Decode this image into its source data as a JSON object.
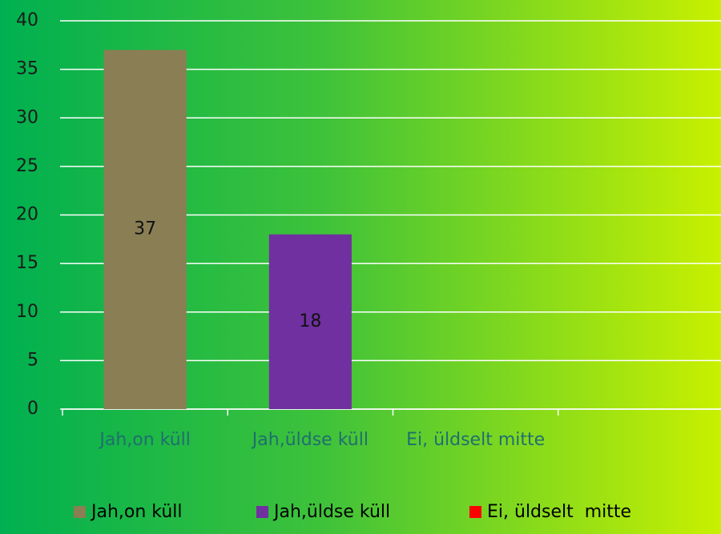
{
  "chart_data": {
    "type": "bar",
    "categories": [
      "Jah,on küll",
      "Jah,üldse küll",
      "Ei, üldselt  mitte",
      null
    ],
    "values": [
      37,
      18,
      0,
      null
    ],
    "colors": [
      "#8a7e54",
      "#7030a0",
      "#ff0000",
      null
    ],
    "ylim": [
      0,
      40
    ],
    "yticks": [
      0,
      5,
      10,
      15,
      20,
      25,
      30,
      35,
      40
    ],
    "grid": true,
    "legend": "bottom"
  }
}
